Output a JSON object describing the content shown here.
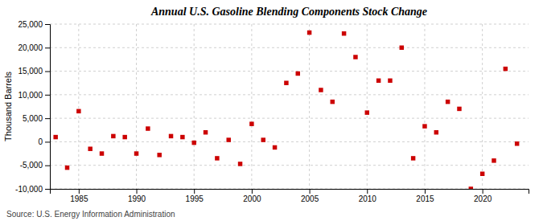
{
  "chart_data": {
    "type": "scatter",
    "title": "Annual U.S. Gasoline Blending Components Stock Change",
    "ylabel": "Thousand Barrels",
    "annotations": [
      "Source: U.S. Energy Information Administration"
    ],
    "color": "#cc0000",
    "marker": "square",
    "grid": true,
    "x": [
      1983,
      1984,
      1985,
      1986,
      1987,
      1988,
      1989,
      1990,
      1991,
      1992,
      1993,
      1994,
      1995,
      1996,
      1997,
      1998,
      1999,
      2000,
      2001,
      2002,
      2003,
      2004,
      2005,
      2006,
      2007,
      2008,
      2009,
      2010,
      2011,
      2012,
      2013,
      2014,
      2015,
      2016,
      2017,
      2018,
      2019,
      2020,
      2021,
      2022,
      2023
    ],
    "values": [
      1000,
      -5500,
      6500,
      -1500,
      -2500,
      1200,
      1000,
      -2500,
      2800,
      -2800,
      1200,
      1000,
      -200,
      2000,
      -3500,
      400,
      -4700,
      3800,
      400,
      -1200,
      12500,
      14500,
      23200,
      11000,
      8500,
      23000,
      18000,
      6200,
      13000,
      13000,
      20000,
      -3500,
      3300,
      2000,
      8500,
      7000,
      -10000,
      -6800,
      -4000,
      15500,
      -400
    ],
    "xlim": [
      1982.5,
      2024
    ],
    "xticks": [
      1985,
      1990,
      1995,
      2000,
      2005,
      2010,
      2015,
      2020
    ],
    "ylim": [
      -10000,
      25000
    ],
    "yticks": [
      {
        "value": -10000,
        "label": "-10,000"
      },
      {
        "value": -5000,
        "label": "-5,000"
      },
      0,
      {
        "value": 5000,
        "label": "5,000"
      },
      {
        "value": 10000,
        "label": "10,000"
      },
      {
        "value": 15000,
        "label": "15,000"
      },
      {
        "value": 20000,
        "label": "20,000"
      },
      {
        "value": 25000,
        "label": "25,000"
      }
    ]
  }
}
